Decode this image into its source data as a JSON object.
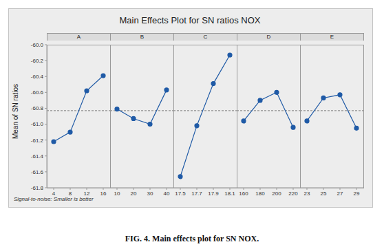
{
  "title": "Main Effects Plot for SN ratios NOX",
  "y_label": "Mean of SN ratios",
  "footnote": "Signal-to-noise: Smaller is better",
  "caption": "FIG. 4. Main effects plot for SN NOX.",
  "chart_data": [
    {
      "type": "line",
      "title": "A",
      "categories": [
        "4",
        "8",
        "12",
        "16"
      ],
      "values": [
        -61.22,
        -61.1,
        -60.58,
        -60.39
      ],
      "color": "#1f5aa6",
      "marker": "circle",
      "reference_line": -60.83,
      "ylim": [
        -61.8,
        -60.0
      ],
      "yticks": [
        {
          "value": -60.0,
          "label": "-60.0"
        },
        -60.2,
        -60.4,
        -60.6,
        -60.8,
        {
          "value": -61.0,
          "label": "-61.0"
        },
        -61.2,
        -61.4,
        -61.6,
        -61.8
      ]
    },
    {
      "type": "line",
      "title": "B",
      "categories": [
        "10",
        "20",
        "30",
        "40"
      ],
      "values": [
        -60.81,
        -60.93,
        -61.0,
        -60.57
      ],
      "color": "#1f5aa6",
      "marker": "circle",
      "reference_line": -60.83,
      "ylim": [
        -61.8,
        -60.0
      ],
      "yticks": [
        {
          "value": -60.0,
          "label": "-60.0"
        },
        -60.2,
        -60.4,
        -60.6,
        -60.8,
        {
          "value": -61.0,
          "label": "-61.0"
        },
        -61.2,
        -61.4,
        -61.6,
        -61.8
      ]
    },
    {
      "type": "line",
      "title": "C",
      "categories": [
        "17.5",
        "17.7",
        "17.9",
        "18.1"
      ],
      "values": [
        -61.66,
        -61.02,
        -60.49,
        -60.13
      ],
      "color": "#1f5aa6",
      "marker": "circle",
      "reference_line": -60.83,
      "ylim": [
        -61.8,
        -60.0
      ],
      "yticks": [
        {
          "value": -60.0,
          "label": "-60.0"
        },
        -60.2,
        -60.4,
        -60.6,
        -60.8,
        {
          "value": -61.0,
          "label": "-61.0"
        },
        -61.2,
        -61.4,
        -61.6,
        -61.8
      ]
    },
    {
      "type": "line",
      "title": "D",
      "categories": [
        "160",
        "180",
        "200",
        "220"
      ],
      "values": [
        -60.96,
        -60.7,
        -60.6,
        -61.04
      ],
      "color": "#1f5aa6",
      "marker": "circle",
      "reference_line": -60.83,
      "ylim": [
        -61.8,
        -60.0
      ],
      "yticks": [
        {
          "value": -60.0,
          "label": "-60.0"
        },
        -60.2,
        -60.4,
        -60.6,
        -60.8,
        {
          "value": -61.0,
          "label": "-61.0"
        },
        -61.2,
        -61.4,
        -61.6,
        -61.8
      ]
    },
    {
      "type": "line",
      "title": "E",
      "categories": [
        "23",
        "25",
        "27",
        "29"
      ],
      "values": [
        -60.96,
        -60.67,
        -60.63,
        -61.05
      ],
      "color": "#1f5aa6",
      "marker": "circle",
      "reference_line": -60.83,
      "ylim": [
        -61.8,
        -60.0
      ],
      "yticks": [
        {
          "value": -60.0,
          "label": "-60.0"
        },
        -60.2,
        -60.4,
        -60.6,
        -60.8,
        {
          "value": -61.0,
          "label": "-61.0"
        },
        -61.2,
        -61.4,
        -61.6,
        -61.8
      ]
    }
  ]
}
